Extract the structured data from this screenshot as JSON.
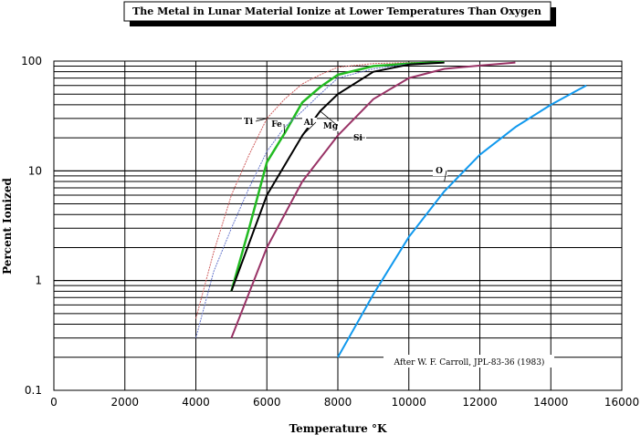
{
  "chart_data": {
    "type": "line",
    "title": "The Metal in Lunar Material Ionize at Lower Temperatures Than Oxygen",
    "xlabel": "Temperature °K",
    "ylabel": "Percent Ionized",
    "xlim": [
      0,
      16000
    ],
    "ylim": [
      0.1,
      100
    ],
    "yscale": "log",
    "xticks": [
      "0",
      "2000",
      "4000",
      "6000",
      "8000",
      "10000",
      "12000",
      "14000",
      "16000"
    ],
    "yticks": [
      "0.1",
      "1",
      "10",
      "100"
    ],
    "grid": true,
    "credit": "After W. F. Carroll, JPL-83-36 (1983)",
    "series": [
      {
        "name": "Ti",
        "color": "#d06060",
        "dash": "2,1",
        "width": 1,
        "points": [
          [
            4000,
            0.45
          ],
          [
            4500,
            1.8
          ],
          [
            5000,
            6
          ],
          [
            5500,
            14
          ],
          [
            6000,
            30
          ],
          [
            6500,
            45
          ],
          [
            7000,
            62
          ],
          [
            7500,
            75
          ],
          [
            8000,
            88
          ],
          [
            9000,
            95
          ],
          [
            10000,
            97
          ],
          [
            11000,
            98
          ]
        ]
      },
      {
        "name": "Fe",
        "color": "#22bb22",
        "dash": "",
        "width": 2.5,
        "points": [
          [
            5000,
            0.8
          ],
          [
            5500,
            3
          ],
          [
            6000,
            12
          ],
          [
            6500,
            22
          ],
          [
            7000,
            42
          ],
          [
            7500,
            58
          ],
          [
            8000,
            75
          ],
          [
            9000,
            90
          ],
          [
            10000,
            95
          ],
          [
            11000,
            98
          ]
        ]
      },
      {
        "name": "Al",
        "color": "#6677cc",
        "dash": "2,1",
        "width": 1,
        "points": [
          [
            4000,
            0.3
          ],
          [
            4500,
            1.2
          ],
          [
            5000,
            3
          ],
          [
            5500,
            7
          ],
          [
            6000,
            15
          ],
          [
            6500,
            25
          ],
          [
            7000,
            35
          ],
          [
            7500,
            50
          ],
          [
            8000,
            70
          ],
          [
            9000,
            85
          ],
          [
            10000,
            94
          ],
          [
            11000,
            97
          ]
        ]
      },
      {
        "name": "Mg",
        "color": "#000000",
        "dash": "",
        "width": 2,
        "points": [
          [
            5000,
            0.8
          ],
          [
            6000,
            6
          ],
          [
            7000,
            21
          ],
          [
            7500,
            35
          ],
          [
            8000,
            50
          ],
          [
            9000,
            80
          ],
          [
            10000,
            93
          ],
          [
            11000,
            97
          ]
        ]
      },
      {
        "name": "Si",
        "color": "#993366",
        "dash": "",
        "width": 2,
        "points": [
          [
            5000,
            0.3
          ],
          [
            6000,
            2
          ],
          [
            7000,
            8
          ],
          [
            8000,
            21
          ],
          [
            9000,
            45
          ],
          [
            10000,
            70
          ],
          [
            11000,
            85
          ],
          [
            12000,
            91
          ],
          [
            13000,
            97
          ]
        ]
      },
      {
        "name": "O",
        "color": "#1199ee",
        "dash": "",
        "width": 2,
        "points": [
          [
            8000,
            0.2
          ],
          [
            9000,
            0.75
          ],
          [
            10000,
            2.5
          ],
          [
            11000,
            6.5
          ],
          [
            12000,
            14
          ],
          [
            13000,
            25
          ],
          [
            14000,
            40
          ],
          [
            15000,
            60
          ]
        ]
      }
    ]
  }
}
